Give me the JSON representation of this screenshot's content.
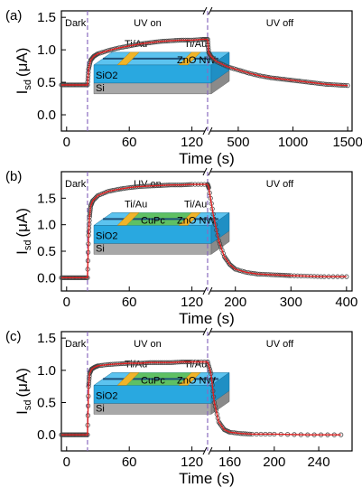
{
  "colors": {
    "curve": "#e02020",
    "marker_edge": "#444444",
    "dashed_line": "#8a6bbf",
    "substrate_si": "#a8a8a8",
    "substrate_sio2": "#29a8e0",
    "electrode": "#f0b429",
    "cupc": "#5fbf4a"
  },
  "chart_data": [
    {
      "type": "line",
      "panel_label": "(a)",
      "ylabel": "I_sd (μA)",
      "ylabel_main": "I",
      "ylabel_sub": "sd",
      "ylabel_unit": "(μA)",
      "xlabel": "Time (s)",
      "ylim": [
        -0.25,
        1.6
      ],
      "yticks": [
        "0.0",
        "0.5",
        "1.0",
        "1.5"
      ],
      "xticks_on": [
        "0",
        "60",
        "120"
      ],
      "xticks_off": [
        "500",
        "1000",
        "1500"
      ],
      "xrange_on": [
        -5,
        135
      ],
      "xrange_off": [
        220,
        1540
      ],
      "uv_on_at": 20,
      "uv_off_at": 135,
      "region_labels": [
        "Dark",
        "UV on",
        "UV off"
      ],
      "inset": {
        "labels": [
          "Ti/Au",
          "Ti/Au",
          "SiO2",
          "Si",
          "ZnO NW"
        ],
        "has_cupc": false
      },
      "dark_current": 0.46,
      "on_points": [
        [
          -5,
          0.46
        ],
        [
          0,
          0.46
        ],
        [
          5,
          0.46
        ],
        [
          10,
          0.46
        ],
        [
          15,
          0.46
        ],
        [
          20,
          0.46
        ],
        [
          21,
          0.7
        ],
        [
          23,
          0.84
        ],
        [
          26,
          0.9
        ],
        [
          30,
          0.94
        ],
        [
          40,
          0.99
        ],
        [
          50,
          1.03
        ],
        [
          60,
          1.06
        ],
        [
          70,
          1.09
        ],
        [
          80,
          1.11
        ],
        [
          90,
          1.13
        ],
        [
          100,
          1.14
        ],
        [
          110,
          1.15
        ],
        [
          120,
          1.15
        ],
        [
          130,
          1.16
        ],
        [
          135,
          1.16
        ]
      ],
      "off_points": [
        [
          220,
          1.16
        ],
        [
          230,
          0.96
        ],
        [
          250,
          0.9
        ],
        [
          300,
          0.82
        ],
        [
          400,
          0.74
        ],
        [
          500,
          0.69
        ],
        [
          600,
          0.64
        ],
        [
          700,
          0.6
        ],
        [
          800,
          0.57
        ],
        [
          900,
          0.55
        ],
        [
          1000,
          0.53
        ],
        [
          1100,
          0.51
        ],
        [
          1200,
          0.49
        ],
        [
          1300,
          0.47
        ],
        [
          1400,
          0.46
        ],
        [
          1500,
          0.45
        ]
      ]
    },
    {
      "type": "line",
      "panel_label": "(b)",
      "ylabel": "I_sd (μA)",
      "ylabel_main": "I",
      "ylabel_sub": "sd",
      "ylabel_unit": "(μA)",
      "xlabel": "Time (s)",
      "ylim": [
        -0.25,
        2.0
      ],
      "yticks": [
        "0.0",
        "0.5",
        "1.0",
        "1.5"
      ],
      "xticks_on": [
        "0",
        "60",
        "120"
      ],
      "xticks_off": [
        "200",
        "300",
        "400"
      ],
      "xrange_on": [
        -5,
        135
      ],
      "xrange_off": [
        150,
        410
      ],
      "uv_on_at": 20,
      "uv_off_at": 135,
      "region_labels": [
        "Dark",
        "UV on",
        "UV off"
      ],
      "inset": {
        "labels": [
          "Ti/Au",
          "Ti/Au",
          "CuPc",
          "ZnO NW",
          "SiO2",
          "Si"
        ],
        "has_cupc": true
      },
      "dark_current": 0.0,
      "on_points": [
        [
          -5,
          0
        ],
        [
          0,
          0
        ],
        [
          5,
          0
        ],
        [
          10,
          0
        ],
        [
          15,
          0
        ],
        [
          20,
          0
        ],
        [
          21,
          0.8
        ],
        [
          22,
          1.15
        ],
        [
          23,
          1.35
        ],
        [
          25,
          1.45
        ],
        [
          30,
          1.55
        ],
        [
          40,
          1.63
        ],
        [
          50,
          1.67
        ],
        [
          60,
          1.7
        ],
        [
          70,
          1.72
        ],
        [
          80,
          1.73
        ],
        [
          90,
          1.74
        ],
        [
          100,
          1.75
        ],
        [
          110,
          1.75
        ],
        [
          120,
          1.76
        ],
        [
          135,
          1.76
        ]
      ],
      "off_points": [
        [
          150,
          1.76
        ],
        [
          152,
          1.7
        ],
        [
          160,
          1.2
        ],
        [
          170,
          0.7
        ],
        [
          180,
          0.4
        ],
        [
          190,
          0.25
        ],
        [
          200,
          0.16
        ],
        [
          220,
          0.1
        ],
        [
          240,
          0.07
        ],
        [
          260,
          0.06
        ],
        [
          280,
          0.05
        ],
        [
          300,
          0.04
        ],
        [
          330,
          0.03
        ],
        [
          360,
          0.02
        ],
        [
          400,
          0.02
        ]
      ]
    },
    {
      "type": "line",
      "panel_label": "(c)",
      "ylabel": "I_sd (μA)",
      "ylabel_main": "I",
      "ylabel_sub": "sd",
      "ylabel_unit": "(μA)",
      "xlabel": "Time (s)",
      "ylim": [
        -0.25,
        1.6
      ],
      "yticks": [
        "0.0",
        "0.5",
        "1.0",
        "1.5"
      ],
      "xticks_on": [
        "0",
        "60",
        "120"
      ],
      "xticks_off": [
        "160",
        "200",
        "240"
      ],
      "xrange_on": [
        -5,
        135
      ],
      "xrange_off": [
        140,
        270
      ],
      "uv_on_at": 20,
      "uv_off_at": 135,
      "region_labels": [
        "Dark",
        "UV on",
        "UV off"
      ],
      "inset": {
        "labels": [
          "Ti/Au",
          "Ti/Au",
          "CuPc",
          "ZnO NW",
          "SiO2",
          "Si"
        ],
        "has_cupc": true
      },
      "dark_current": 0.0,
      "on_points": [
        [
          -5,
          0
        ],
        [
          0,
          0
        ],
        [
          5,
          0
        ],
        [
          10,
          0
        ],
        [
          15,
          0
        ],
        [
          20,
          0
        ],
        [
          21,
          0.75
        ],
        [
          22,
          0.95
        ],
        [
          24,
          1.02
        ],
        [
          27,
          1.05
        ],
        [
          30,
          1.07
        ],
        [
          40,
          1.09
        ],
        [
          50,
          1.1
        ],
        [
          60,
          1.11
        ],
        [
          70,
          1.11
        ],
        [
          80,
          1.12
        ],
        [
          90,
          1.12
        ],
        [
          100,
          1.12
        ],
        [
          110,
          1.13
        ],
        [
          120,
          1.13
        ],
        [
          135,
          1.13
        ]
      ],
      "off_points": [
        [
          140,
          1.13
        ],
        [
          143,
          0.95
        ],
        [
          146,
          0.5
        ],
        [
          150,
          0.2
        ],
        [
          155,
          0.08
        ],
        [
          160,
          0.04
        ],
        [
          170,
          0.02
        ],
        [
          180,
          0.01
        ],
        [
          200,
          0.01
        ],
        [
          230,
          0.0
        ],
        [
          260,
          0.0
        ]
      ]
    }
  ]
}
